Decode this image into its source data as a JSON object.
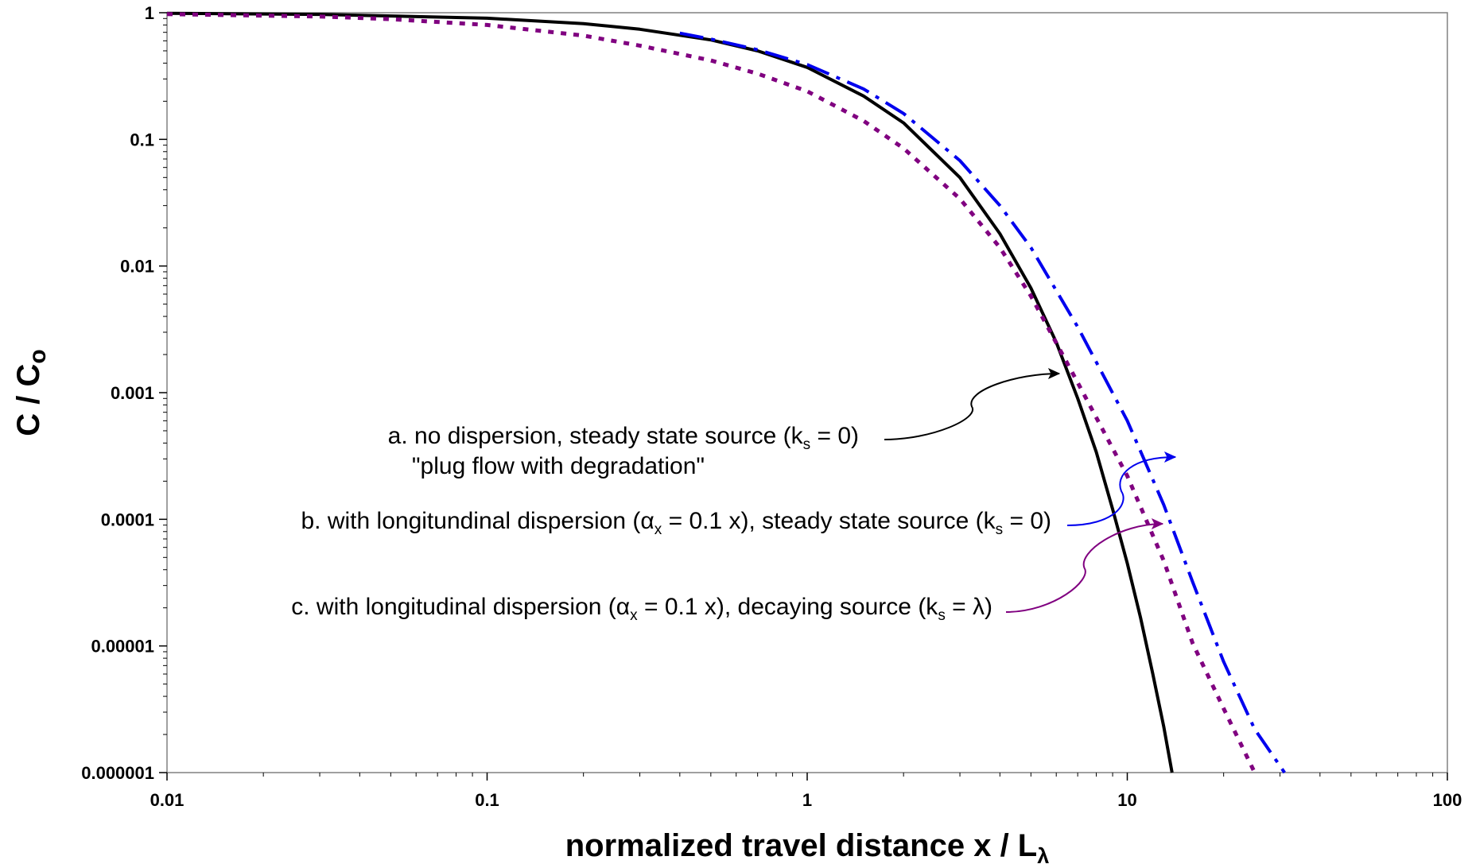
{
  "chart_data": {
    "type": "line",
    "xscale": "log",
    "yscale": "log",
    "xlim": [
      0.01,
      100
    ],
    "ylim": [
      1e-06,
      1
    ],
    "grid": false,
    "x_ticks": [
      {
        "value": 0.01,
        "label": "0.01"
      },
      {
        "value": 0.1,
        "label": "0.1"
      },
      {
        "value": 1,
        "label": "1"
      },
      {
        "value": 10,
        "label": "10"
      },
      {
        "value": 100,
        "label": "100"
      }
    ],
    "y_ticks": [
      {
        "value": 1,
        "label": "1"
      },
      {
        "value": 0.1,
        "label": "0.1"
      },
      {
        "value": 0.01,
        "label": "0.01"
      },
      {
        "value": 0.001,
        "label": "0.001"
      },
      {
        "value": 0.0001,
        "label": "0.0001"
      },
      {
        "value": 1e-05,
        "label": "0.00001"
      },
      {
        "value": 1e-06,
        "label": "0.000001"
      }
    ],
    "xlabel": {
      "text": "normalized travel distance x / L",
      "sub": "λ"
    },
    "ylabel": {
      "text": "C / C",
      "sub": "o"
    },
    "series": [
      {
        "key": "a",
        "style": "solid",
        "color": "#000000",
        "points": [
          [
            0.01,
            0.99
          ],
          [
            0.03,
            0.97
          ],
          [
            0.1,
            0.905
          ],
          [
            0.2,
            0.82
          ],
          [
            0.3,
            0.74
          ],
          [
            0.5,
            0.61
          ],
          [
            0.7,
            0.5
          ],
          [
            1,
            0.37
          ],
          [
            1.5,
            0.22
          ],
          [
            2,
            0.135
          ],
          [
            3,
            0.05
          ],
          [
            4,
            0.018
          ],
          [
            5,
            0.0067
          ],
          [
            6,
            0.0025
          ],
          [
            7,
            0.0009
          ],
          [
            8,
            0.00034
          ],
          [
            9,
            0.00012
          ],
          [
            10,
            4.5e-05
          ],
          [
            11,
            1.67e-05
          ],
          [
            12,
            6.1e-06
          ],
          [
            13,
            2.3e-06
          ],
          [
            13.8,
            1e-06
          ]
        ]
      },
      {
        "key": "b",
        "style": "dashdot",
        "color": "#0000ee",
        "points": [
          [
            0.4,
            0.69
          ],
          [
            0.5,
            0.62
          ],
          [
            0.7,
            0.51
          ],
          [
            1,
            0.39
          ],
          [
            1.5,
            0.25
          ],
          [
            2,
            0.16
          ],
          [
            3,
            0.068
          ],
          [
            4,
            0.03
          ],
          [
            5,
            0.014
          ],
          [
            7,
            0.0033
          ],
          [
            10,
            0.0006
          ],
          [
            13,
            0.00013
          ],
          [
            16,
            3.2e-05
          ],
          [
            20,
            7.5e-06
          ],
          [
            25,
            2.2e-06
          ],
          [
            31,
            1e-06
          ]
        ]
      },
      {
        "key": "c",
        "style": "dotted",
        "color": "#800080",
        "points": [
          [
            0.01,
            0.975
          ],
          [
            0.03,
            0.935
          ],
          [
            0.05,
            0.89
          ],
          [
            0.1,
            0.8
          ],
          [
            0.2,
            0.66
          ],
          [
            0.3,
            0.55
          ],
          [
            0.5,
            0.42
          ],
          [
            0.7,
            0.33
          ],
          [
            1,
            0.24
          ],
          [
            1.5,
            0.14
          ],
          [
            2,
            0.085
          ],
          [
            3,
            0.034
          ],
          [
            4,
            0.014
          ],
          [
            5,
            0.0058
          ],
          [
            7,
            0.0012
          ],
          [
            10,
            0.00022
          ],
          [
            13,
            4.7e-05
          ],
          [
            16,
            1.05e-05
          ],
          [
            20,
            3.2e-06
          ],
          [
            25,
            1e-06
          ]
        ]
      }
    ],
    "annotations": [
      {
        "key": "a",
        "parts": [
          {
            "t": "a. no dispersion, steady state source (k"
          },
          {
            "t": "s",
            "sub": true
          },
          {
            "t": " = 0)"
          }
        ],
        "line2": "\"plug flow with degradation\"",
        "color": "#000000"
      },
      {
        "key": "b",
        "parts": [
          {
            "t": "b. with longitundinal dispersion (α"
          },
          {
            "t": "x",
            "sub": true
          },
          {
            "t": " = 0.1 x), steady state source (k"
          },
          {
            "t": "s",
            "sub": true
          },
          {
            "t": " = 0)"
          }
        ],
        "color": "#0000ee"
      },
      {
        "key": "c",
        "parts": [
          {
            "t": "c. with longitudinal dispersion (α"
          },
          {
            "t": "x",
            "sub": true
          },
          {
            "t": " = 0.1 x), decaying source (k"
          },
          {
            "t": "s",
            "sub": true
          },
          {
            "t": " = λ)"
          }
        ],
        "color": "#800080"
      }
    ]
  }
}
